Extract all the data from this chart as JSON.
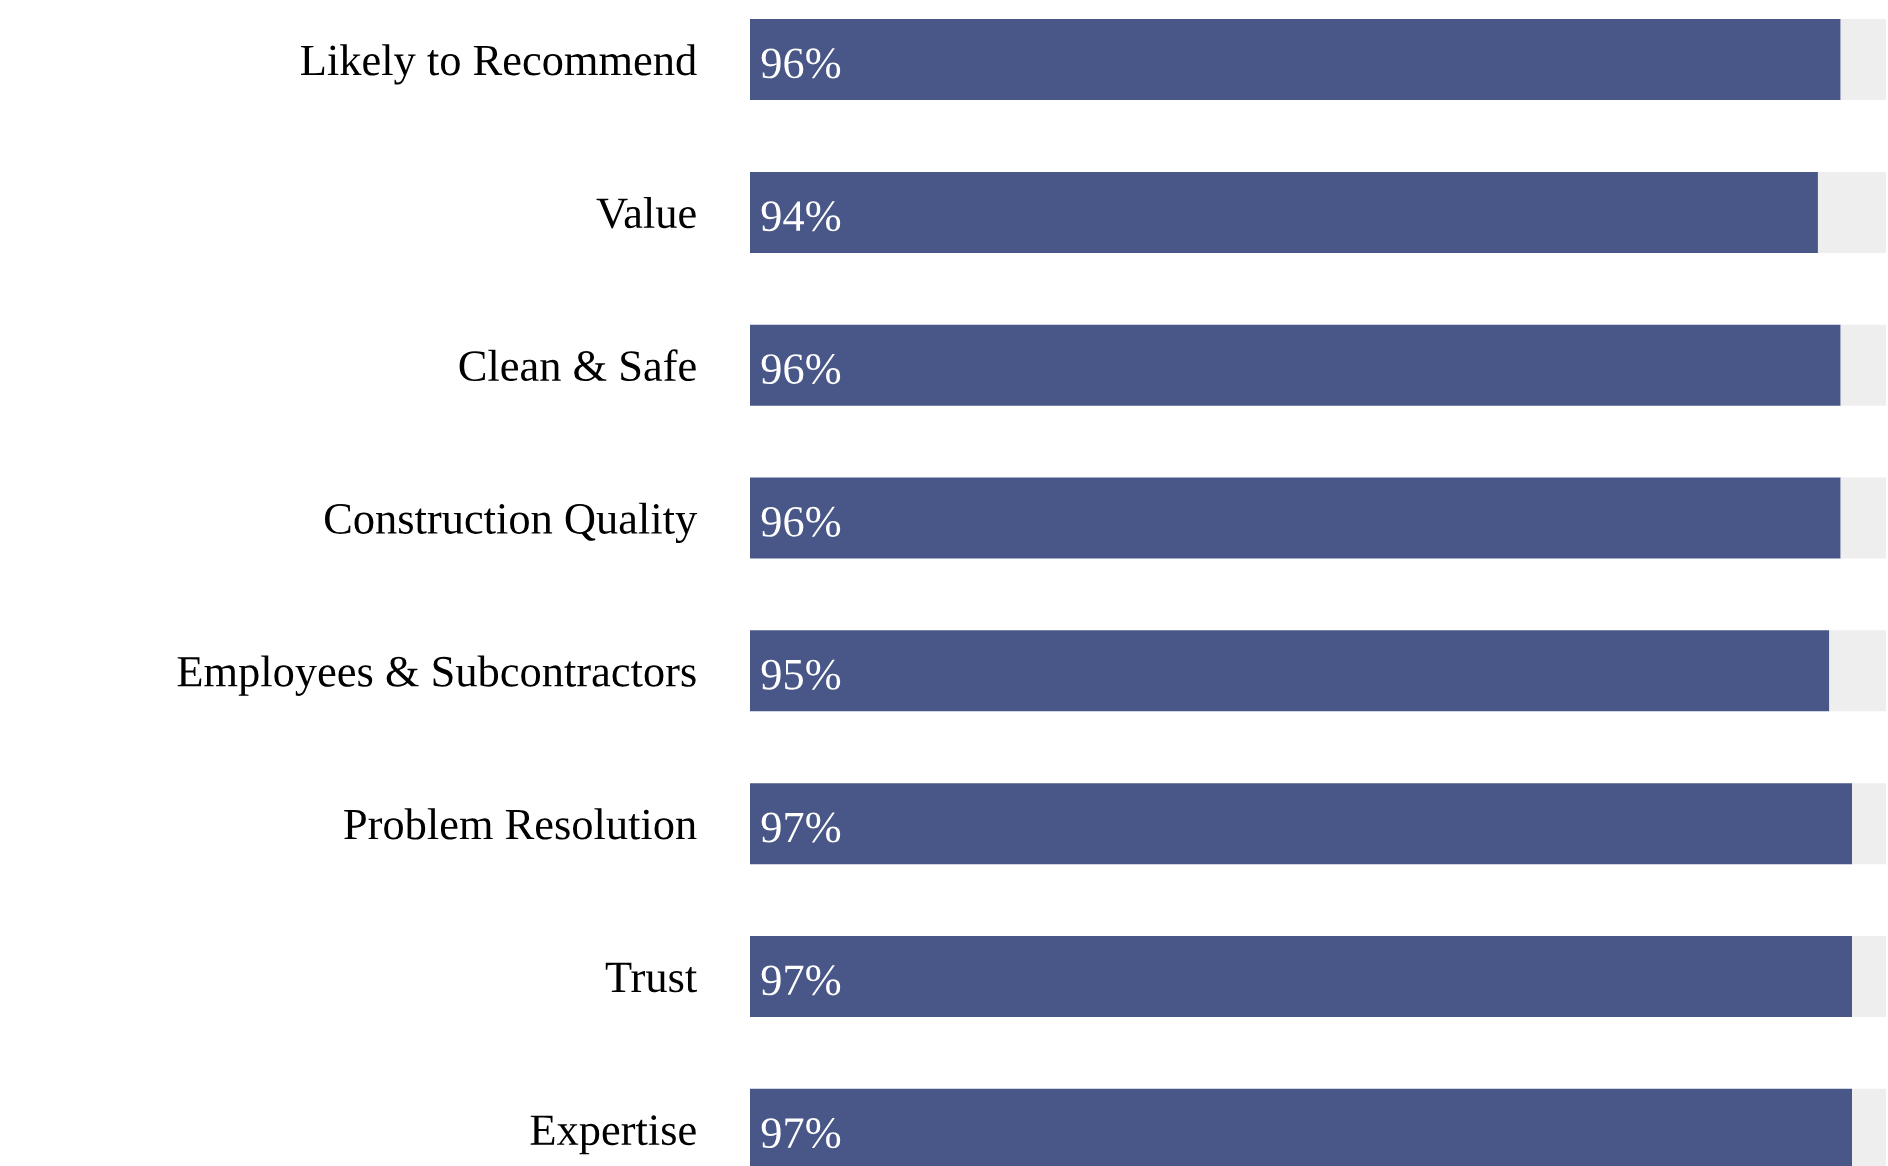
{
  "chart_data": {
    "type": "bar",
    "orientation": "horizontal",
    "stacked": true,
    "categories": [
      "Likely to Recommend",
      "Value",
      "Clean & Safe",
      "Construction Quality",
      "Employees & Subcontractors",
      "Problem Resolution",
      "Trust",
      "Expertise"
    ],
    "series": [
      {
        "color": "#485787",
        "values": [
          96,
          94,
          96,
          96,
          95,
          97,
          97,
          97
        ],
        "value_labels": [
          "96%",
          "94%",
          "96%",
          "96%",
          "95%",
          "97%",
          "97%",
          "97%"
        ]
      },
      {
        "color": "#eeeeee",
        "values": [
          4,
          6,
          4,
          4,
          5,
          3,
          3,
          3
        ]
      }
    ],
    "xlim": [
      0,
      100
    ],
    "tick_labels": "y",
    "grid": false
  }
}
